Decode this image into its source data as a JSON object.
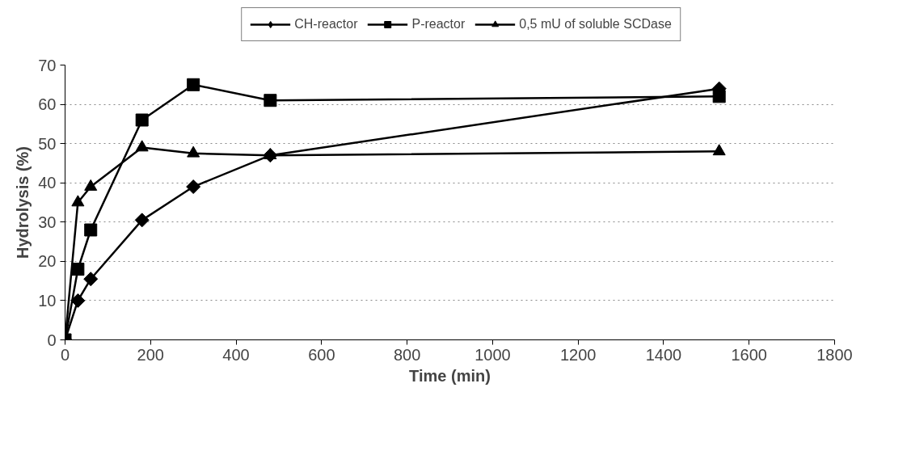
{
  "chart_data": {
    "type": "line",
    "xlabel": "Time (min)",
    "ylabel": "Hydrolysis (%)",
    "x": [
      0,
      30,
      60,
      180,
      300,
      480,
      1530
    ],
    "series": [
      {
        "name": "CH-reactor",
        "color": "#000000",
        "marker": "diamond",
        "values": [
          0,
          10,
          15.5,
          30.5,
          39,
          47,
          64
        ]
      },
      {
        "name": "P-reactor",
        "color": "#000000",
        "marker": "square",
        "values": [
          0,
          18,
          28,
          56,
          65,
          61,
          62
        ]
      },
      {
        "name": "0,5 mU of soluble SCDase",
        "color": "#000000",
        "marker": "triangle",
        "values": [
          0,
          35,
          39,
          49,
          47.5,
          47,
          48
        ]
      }
    ],
    "xlim": [
      0,
      1800
    ],
    "xticks": [
      0,
      200,
      400,
      600,
      800,
      1000,
      1200,
      1400,
      1600,
      1800
    ],
    "ylim": [
      0,
      70
    ],
    "yticks": [
      0,
      10,
      20,
      30,
      40,
      50,
      60,
      70
    ],
    "grid": "y",
    "legend": "top",
    "line_style": "solid"
  }
}
